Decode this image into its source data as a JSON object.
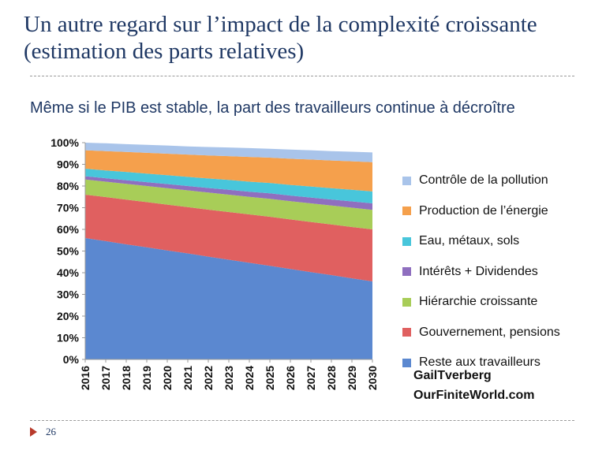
{
  "slide": {
    "title": "Un autre regard sur l’impact de la complexité croissante (estimation des parts relatives)",
    "page_number": "26",
    "credit_author": "GailTverberg",
    "credit_site": "OurFiniteWorld.com"
  },
  "chart_data": {
    "type": "area",
    "stacked": true,
    "title": "Même si le PIB est stable, la part des travailleurs continue à décroître",
    "xlabel": "",
    "ylabel": "",
    "ylim": [
      0,
      100
    ],
    "y_ticks": [
      "0%",
      "10%",
      "20%",
      "30%",
      "40%",
      "50%",
      "60%",
      "70%",
      "80%",
      "90%",
      "100%"
    ],
    "x": [
      "2016",
      "2017",
      "2018",
      "2019",
      "2020",
      "2021",
      "2022",
      "2023",
      "2024",
      "2025",
      "2026",
      "2027",
      "2028",
      "2029",
      "2030"
    ],
    "legend_position": "right",
    "grid": false,
    "series": [
      {
        "name": "Reste aux travailleurs",
        "color": "#5b88d0",
        "values": [
          56,
          54.6,
          53.1,
          51.7,
          50.3,
          48.9,
          47.4,
          46,
          44.6,
          43.2,
          41.7,
          40.3,
          38.9,
          37.4,
          36
        ]
      },
      {
        "name": "Gouvernement, pensions",
        "color": "#e06060",
        "values": [
          20,
          20.3,
          20.6,
          20.9,
          21.1,
          21.4,
          21.7,
          22,
          22.3,
          22.6,
          22.9,
          23.1,
          23.4,
          23.7,
          24
        ]
      },
      {
        "name": "Hiérarchie croissante",
        "color": "#a8cd58",
        "values": [
          7,
          7.1,
          7.3,
          7.4,
          7.6,
          7.7,
          7.9,
          8,
          8.1,
          8.3,
          8.4,
          8.6,
          8.7,
          8.9,
          9
        ]
      },
      {
        "name": "Intérêts + Dividendes",
        "color": "#8f6fbf",
        "values": [
          1.5,
          1.6,
          1.7,
          1.8,
          1.9,
          2,
          2.1,
          2.3,
          2.4,
          2.5,
          2.6,
          2.7,
          2.8,
          2.9,
          3
        ]
      },
      {
        "name": "Eau, métaux, sols",
        "color": "#48c6db",
        "values": [
          3.5,
          3.6,
          3.8,
          3.9,
          4.1,
          4.2,
          4.4,
          4.5,
          4.6,
          4.8,
          4.9,
          5.1,
          5.2,
          5.4,
          5.5
        ]
      },
      {
        "name": "Production de l’énergie",
        "color": "#f5a04c",
        "values": [
          8.5,
          8.9,
          9.2,
          9.6,
          9.9,
          10.3,
          10.6,
          11,
          11.4,
          11.7,
          12.1,
          12.4,
          12.8,
          13.1,
          13.5
        ]
      },
      {
        "name": "Contrôle de la pollution",
        "color": "#a9c4ea",
        "values": [
          3.5,
          3.6,
          3.6,
          3.7,
          3.8,
          3.8,
          3.9,
          4,
          4.1,
          4.1,
          4.2,
          4.3,
          4.3,
          4.4,
          4.5
        ]
      }
    ]
  }
}
